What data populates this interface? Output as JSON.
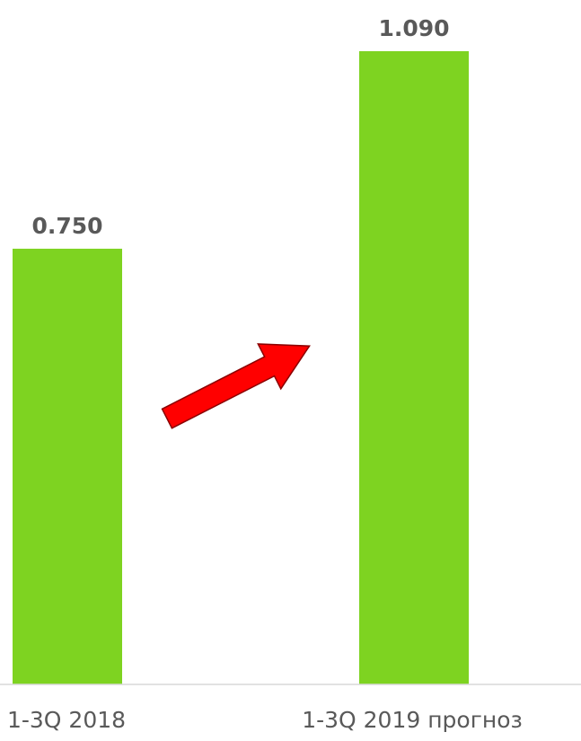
{
  "chart_data": {
    "type": "bar",
    "categories": [
      "1-3Q 2018",
      "1-3Q 2019 прогноз"
    ],
    "values": [
      0.75,
      1.09
    ],
    "data_labels": [
      "0.750",
      "1.090"
    ],
    "title": "",
    "xlabel": "",
    "ylabel": "",
    "ylim": [
      0,
      1.2
    ],
    "grid": false,
    "legend": "none",
    "bar_color": "#7ED321",
    "axis_color": "#D9D9D9",
    "text_color": "#595959",
    "annotations": [
      {
        "type": "arrow",
        "direction": "up-right",
        "color": "#FF0000"
      }
    ]
  }
}
